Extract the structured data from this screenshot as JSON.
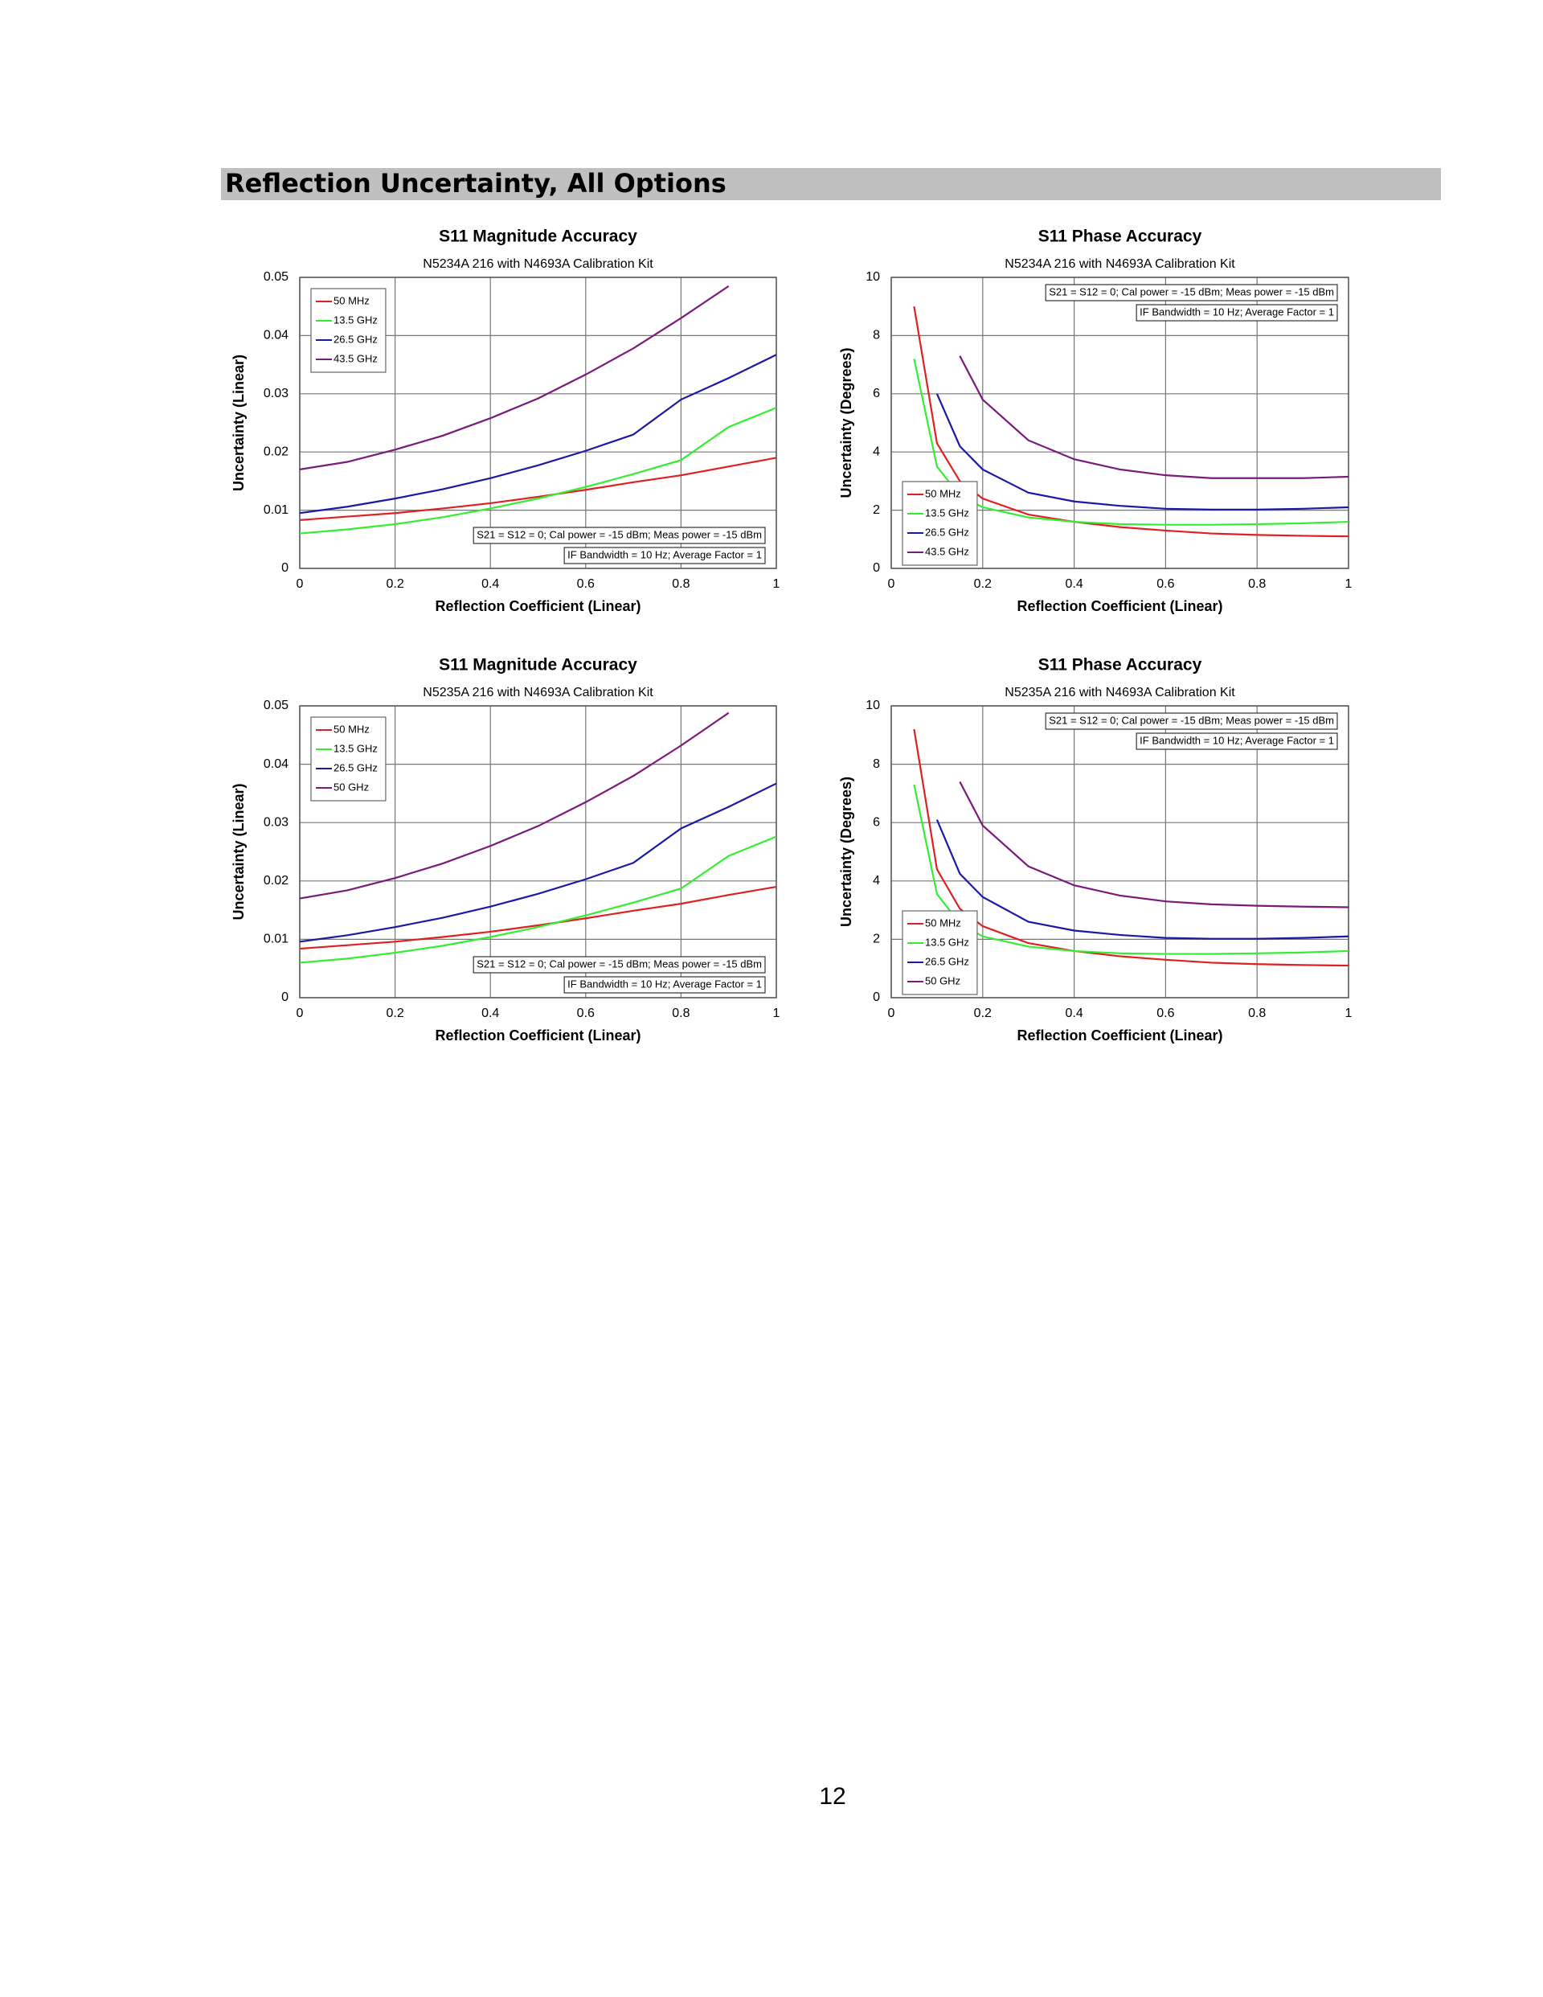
{
  "header": {
    "title": "Reflection Uncertainty, All Options"
  },
  "page_number": "12",
  "chart_data": [
    {
      "type": "line",
      "title": "S11 Magnitude Accuracy",
      "subtitle": "N5234A 216 with N4693A Calibration Kit",
      "xlabel": "Reflection Coefficient (Linear)",
      "ylabel": "Uncertainty (Linear)",
      "x": [
        0,
        0.1,
        0.2,
        0.3,
        0.4,
        0.5,
        0.6,
        0.7,
        0.8,
        0.9,
        1
      ],
      "series": [
        {
          "name": "50 MHz",
          "color": "#e02020",
          "values": [
            0.0083,
            0.0089,
            0.0095,
            0.0103,
            0.0112,
            0.0123,
            0.0135,
            0.0148,
            0.016,
            0.0175,
            0.019
          ]
        },
        {
          "name": "13.5 GHz",
          "color": "#33ee33",
          "values": [
            0.006,
            0.0067,
            0.0076,
            0.0088,
            0.0103,
            0.012,
            0.014,
            0.0162,
            0.0186,
            0.0243,
            0.0276
          ]
        },
        {
          "name": "26.5 GHz",
          "color": "#1a1aa6",
          "values": [
            0.0095,
            0.0106,
            0.012,
            0.0136,
            0.0155,
            0.0177,
            0.0202,
            0.023,
            0.029,
            0.0327,
            0.0367
          ]
        },
        {
          "name": "43.5 GHz",
          "color": "#7a1a7a",
          "values": [
            0.017,
            0.0183,
            0.0204,
            0.0228,
            0.0258,
            0.0292,
            0.0333,
            0.0378,
            0.043,
            0.0485,
            null
          ]
        }
      ],
      "xlim": [
        0,
        1
      ],
      "ylim": [
        0,
        0.05
      ],
      "xticks": [
        0,
        0.2,
        0.4,
        0.6,
        0.8,
        1
      ],
      "yticks": [
        0,
        0.01,
        0.02,
        0.03,
        0.04,
        0.05
      ],
      "grid": true,
      "legend": "upper left",
      "annotations": [
        "S21 = S12 = 0; Cal power = -15 dBm; Meas power = -15 dBm",
        "IF Bandwidth = 10 Hz; Average Factor = 1"
      ],
      "annotation_corner": "lower right"
    },
    {
      "type": "line",
      "title": "S11 Phase Accuracy",
      "subtitle": "N5234A 216 with N4693A Calibration Kit",
      "xlabel": "Reflection Coefficient (Linear)",
      "ylabel": "Uncertainty (Degrees)",
      "x": [
        0.05,
        0.1,
        0.15,
        0.2,
        0.3,
        0.4,
        0.5,
        0.6,
        0.7,
        0.8,
        0.9,
        1
      ],
      "series": [
        {
          "name": "50 MHz",
          "color": "#e02020",
          "values": [
            9.0,
            4.3,
            3.0,
            2.4,
            1.85,
            1.6,
            1.42,
            1.3,
            1.2,
            1.15,
            1.12,
            1.1
          ]
        },
        {
          "name": "13.5 GHz",
          "color": "#33ee33",
          "values": [
            7.2,
            3.5,
            2.5,
            2.1,
            1.75,
            1.6,
            1.52,
            1.5,
            1.5,
            1.52,
            1.55,
            1.6
          ]
        },
        {
          "name": "26.5 GHz",
          "color": "#1a1aa6",
          "values": [
            null,
            6.0,
            4.2,
            3.4,
            2.6,
            2.3,
            2.15,
            2.05,
            2.02,
            2.02,
            2.05,
            2.1
          ]
        },
        {
          "name": "43.5 GHz",
          "color": "#7a1a7a",
          "values": [
            null,
            null,
            7.3,
            5.8,
            4.4,
            3.75,
            3.4,
            3.2,
            3.1,
            3.1,
            3.1,
            3.15
          ]
        }
      ],
      "xlim": [
        0,
        1
      ],
      "ylim": [
        0,
        10
      ],
      "xticks": [
        0,
        0.2,
        0.4,
        0.6,
        0.8,
        1
      ],
      "yticks": [
        0,
        2,
        4,
        6,
        8,
        10
      ],
      "grid": true,
      "legend": "lower left",
      "annotations": [
        "S21 = S12 = 0; Cal power = -15 dBm; Meas power = -15 dBm",
        "IF Bandwidth = 10 Hz; Average Factor = 1"
      ],
      "annotation_corner": "upper right"
    },
    {
      "type": "line",
      "title": "S11 Magnitude Accuracy",
      "subtitle": "N5235A 216 with N4693A Calibration Kit",
      "xlabel": "Reflection Coefficient (Linear)",
      "ylabel": "Uncertainty (Linear)",
      "x": [
        0,
        0.1,
        0.2,
        0.3,
        0.4,
        0.5,
        0.6,
        0.7,
        0.8,
        0.9,
        1
      ],
      "series": [
        {
          "name": "50 MHz",
          "color": "#e02020",
          "values": [
            0.0084,
            0.009,
            0.0096,
            0.0104,
            0.0113,
            0.0124,
            0.0136,
            0.0149,
            0.0161,
            0.0176,
            0.019
          ]
        },
        {
          "name": "13.5 GHz",
          "color": "#33ee33",
          "values": [
            0.006,
            0.0067,
            0.0077,
            0.0089,
            0.0104,
            0.0121,
            0.0141,
            0.0163,
            0.0187,
            0.0243,
            0.0276
          ]
        },
        {
          "name": "26.5 GHz",
          "color": "#1a1aa6",
          "values": [
            0.0096,
            0.0107,
            0.0121,
            0.0137,
            0.0156,
            0.0178,
            0.0203,
            0.0231,
            0.029,
            0.0327,
            0.0367
          ]
        },
        {
          "name": "50 GHz",
          "color": "#7a1a7a",
          "values": [
            0.017,
            0.0184,
            0.0205,
            0.023,
            0.026,
            0.0294,
            0.0335,
            0.038,
            0.0432,
            0.0488,
            null
          ]
        }
      ],
      "xlim": [
        0,
        1
      ],
      "ylim": [
        0,
        0.05
      ],
      "xticks": [
        0,
        0.2,
        0.4,
        0.6,
        0.8,
        1
      ],
      "yticks": [
        0,
        0.01,
        0.02,
        0.03,
        0.04,
        0.05
      ],
      "grid": true,
      "legend": "upper left",
      "annotations": [
        "S21 = S12 = 0; Cal power = -15 dBm; Meas power = -15 dBm",
        "IF Bandwidth = 10 Hz; Average Factor = 1"
      ],
      "annotation_corner": "lower right"
    },
    {
      "type": "line",
      "title": "S11 Phase Accuracy",
      "subtitle": "N5235A 216 with N4693A Calibration Kit",
      "xlabel": "Reflection Coefficient (Linear)",
      "ylabel": "Uncertainty (Degrees)",
      "x": [
        0.05,
        0.1,
        0.15,
        0.2,
        0.3,
        0.4,
        0.5,
        0.6,
        0.7,
        0.8,
        0.9,
        1
      ],
      "series": [
        {
          "name": "50 MHz",
          "color": "#e02020",
          "values": [
            9.2,
            4.4,
            3.05,
            2.45,
            1.87,
            1.6,
            1.42,
            1.3,
            1.2,
            1.15,
            1.12,
            1.1
          ]
        },
        {
          "name": "13.5 GHz",
          "color": "#33ee33",
          "values": [
            7.3,
            3.55,
            2.55,
            2.1,
            1.75,
            1.6,
            1.52,
            1.5,
            1.5,
            1.52,
            1.55,
            1.6
          ]
        },
        {
          "name": "26.5 GHz",
          "color": "#1a1aa6",
          "values": [
            null,
            6.1,
            4.25,
            3.45,
            2.6,
            2.3,
            2.15,
            2.05,
            2.02,
            2.02,
            2.05,
            2.1
          ]
        },
        {
          "name": "50 GHz",
          "color": "#7a1a7a",
          "values": [
            null,
            null,
            7.4,
            5.9,
            4.5,
            3.85,
            3.5,
            3.3,
            3.2,
            3.15,
            3.12,
            3.1
          ]
        }
      ],
      "xlim": [
        0,
        1
      ],
      "ylim": [
        0,
        10
      ],
      "xticks": [
        0,
        0.2,
        0.4,
        0.6,
        0.8,
        1
      ],
      "yticks": [
        0,
        2,
        4,
        6,
        8,
        10
      ],
      "grid": true,
      "legend": "lower left",
      "annotations": [
        "S21 = S12 = 0; Cal power = -15 dBm; Meas power = -15 dBm",
        "IF Bandwidth = 10 Hz; Average Factor = 1"
      ],
      "annotation_corner": "upper right"
    }
  ]
}
